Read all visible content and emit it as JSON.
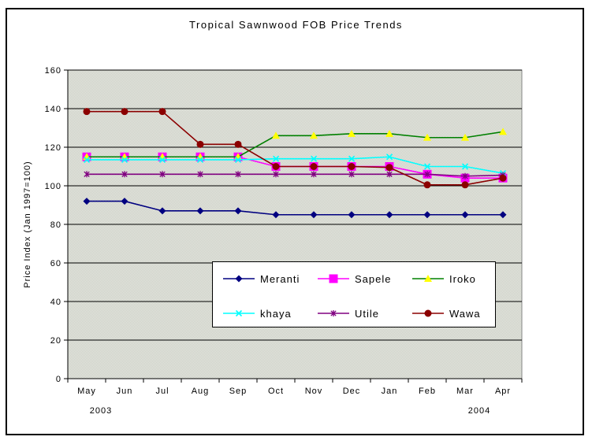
{
  "window": {
    "background": "#ffffff",
    "frame_border_color": "#000000"
  },
  "chart_data": {
    "type": "line",
    "title": "Tropical Sawnwood FOB Price Trends",
    "xlabel": "",
    "ylabel": "Price Index (Jan 1997=100)",
    "ylim": [
      0,
      160
    ],
    "ytick_labels": [
      "0",
      "20",
      "40",
      "60",
      "80",
      "100",
      "120",
      "140",
      "160"
    ],
    "grid": true,
    "gridline_color": "#000000",
    "plot_bg_colors": [
      "#e8eae4",
      "#c9ccc2"
    ],
    "plot_border_color": "#848684",
    "x_categories": [
      "May",
      "Jun",
      "Jul",
      "Aug",
      "Sep",
      "Oct",
      "Nov",
      "Dec",
      "Jan",
      "Feb",
      "Mar",
      "Apr"
    ],
    "year_labels": [
      {
        "text": "2003",
        "under_month": "May"
      },
      {
        "text": "2004",
        "under_month": "Mar"
      }
    ],
    "legend_position": "overlay-lower-center",
    "series": [
      {
        "name": "Meranti",
        "color": "#000080",
        "marker": "diamond",
        "marker_color": "#000080",
        "values": [
          92,
          92,
          87,
          87,
          87,
          85,
          85,
          85,
          85,
          85,
          85,
          85
        ]
      },
      {
        "name": "Sapele",
        "color": "#ff00ff",
        "marker": "square",
        "marker_color": "#ff00ff",
        "values": [
          115,
          115,
          115,
          115,
          115,
          110,
          110,
          110,
          110,
          106,
          104,
          104
        ]
      },
      {
        "name": "Iroko",
        "color": "#008000",
        "marker": "triangle",
        "marker_color": "#ffff00",
        "values": [
          115,
          115,
          115,
          115,
          115,
          126,
          126,
          127,
          127,
          125,
          125,
          128
        ]
      },
      {
        "name": "khaya",
        "color": "#00ffff",
        "marker": "x",
        "marker_color": "#00ffff",
        "values": [
          113.5,
          113.5,
          113.5,
          113.5,
          113.5,
          114,
          114,
          114,
          115,
          110,
          110,
          106.5
        ]
      },
      {
        "name": "Utile",
        "color": "#800080",
        "marker": "star",
        "marker_color": "#800080",
        "values": [
          106,
          106,
          106,
          106,
          106,
          106,
          106,
          106,
          106,
          106,
          105,
          105.5
        ]
      },
      {
        "name": "Wawa",
        "color": "#8b0000",
        "marker": "circle",
        "marker_color": "#8b0000",
        "values": [
          138.5,
          138.5,
          138.5,
          121.5,
          121.5,
          110,
          110,
          110,
          109.5,
          100.5,
          100.5,
          104
        ]
      }
    ]
  }
}
